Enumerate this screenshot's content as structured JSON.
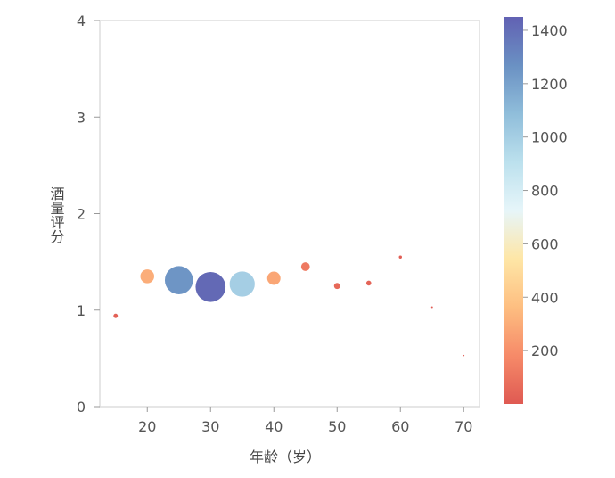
{
  "chart_data": {
    "type": "scatter",
    "xlabel": "年龄（岁）",
    "ylabel": "酒量评分",
    "xlim": [
      12.5,
      72.5
    ],
    "ylim": [
      0,
      4
    ],
    "xticks": [
      "20",
      "30",
      "40",
      "50",
      "60",
      "70"
    ],
    "yticks": [
      "0",
      "1",
      "2",
      "3",
      "4"
    ],
    "points": [
      {
        "x": 15,
        "y": 0.94,
        "value": 30
      },
      {
        "x": 20,
        "y": 1.35,
        "value": 300
      },
      {
        "x": 25,
        "y": 1.31,
        "value": 1250
      },
      {
        "x": 30,
        "y": 1.24,
        "value": 1420
      },
      {
        "x": 35,
        "y": 1.27,
        "value": 1000
      },
      {
        "x": 40,
        "y": 1.33,
        "value": 280
      },
      {
        "x": 45,
        "y": 1.45,
        "value": 120
      },
      {
        "x": 50,
        "y": 1.25,
        "value": 60
      },
      {
        "x": 55,
        "y": 1.28,
        "value": 40
      },
      {
        "x": 60,
        "y": 1.55,
        "value": 15
      },
      {
        "x": 65,
        "y": 1.03,
        "value": 5
      },
      {
        "x": 70,
        "y": 0.53,
        "value": 2
      }
    ],
    "colorbar": {
      "min": 0,
      "max": 1450,
      "ticks": [
        "200",
        "400",
        "600",
        "800",
        "1000",
        "1200",
        "1400"
      ],
      "colormap": [
        "#d73027",
        "#f46d43",
        "#fdae61",
        "#fee090",
        "#e0f3f8",
        "#abd9e9",
        "#74add1",
        "#4575b4",
        "#3a3aa0"
      ]
    },
    "grid": false
  }
}
